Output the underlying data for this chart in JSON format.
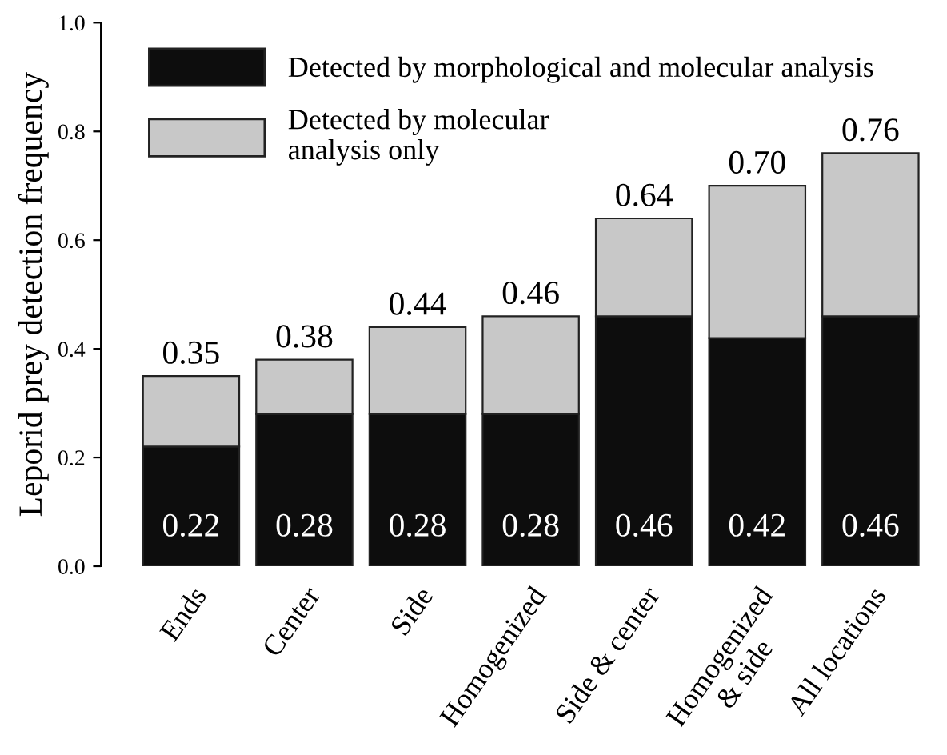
{
  "chart_data": {
    "type": "bar",
    "stacked": true,
    "ylabel": "Leporid prey detection frequency",
    "categories": [
      "Ends",
      "Center",
      "Side",
      "Homogenized",
      "Side & center",
      "Homogenized\n& side",
      "All locations"
    ],
    "series": [
      {
        "name": "Detected by morphological and molecular analysis",
        "color": "#0d0d0d",
        "values": [
          0.22,
          0.28,
          0.28,
          0.28,
          0.46,
          0.42,
          0.46
        ],
        "value_labels": [
          "0.22",
          "0.28",
          "0.28",
          "0.28",
          "0.46",
          "0.42",
          "0.46"
        ]
      },
      {
        "name": "Detected by molecular\nanalysis only",
        "color": "#c8c8c8",
        "values": [
          0.13,
          0.1,
          0.16,
          0.18,
          0.18,
          0.28,
          0.3
        ]
      }
    ],
    "totals": [
      "0.35",
      "0.38",
      "0.44",
      "0.46",
      "0.64",
      "0.70",
      "0.76"
    ],
    "ylim": [
      0,
      1
    ],
    "yticks": [
      {
        "value": 0,
        "label": "0.0"
      },
      0.2,
      0.4,
      0.6,
      0.8,
      {
        "value": 1,
        "label": "1.0"
      }
    ],
    "grid": false,
    "legend": "top left"
  }
}
